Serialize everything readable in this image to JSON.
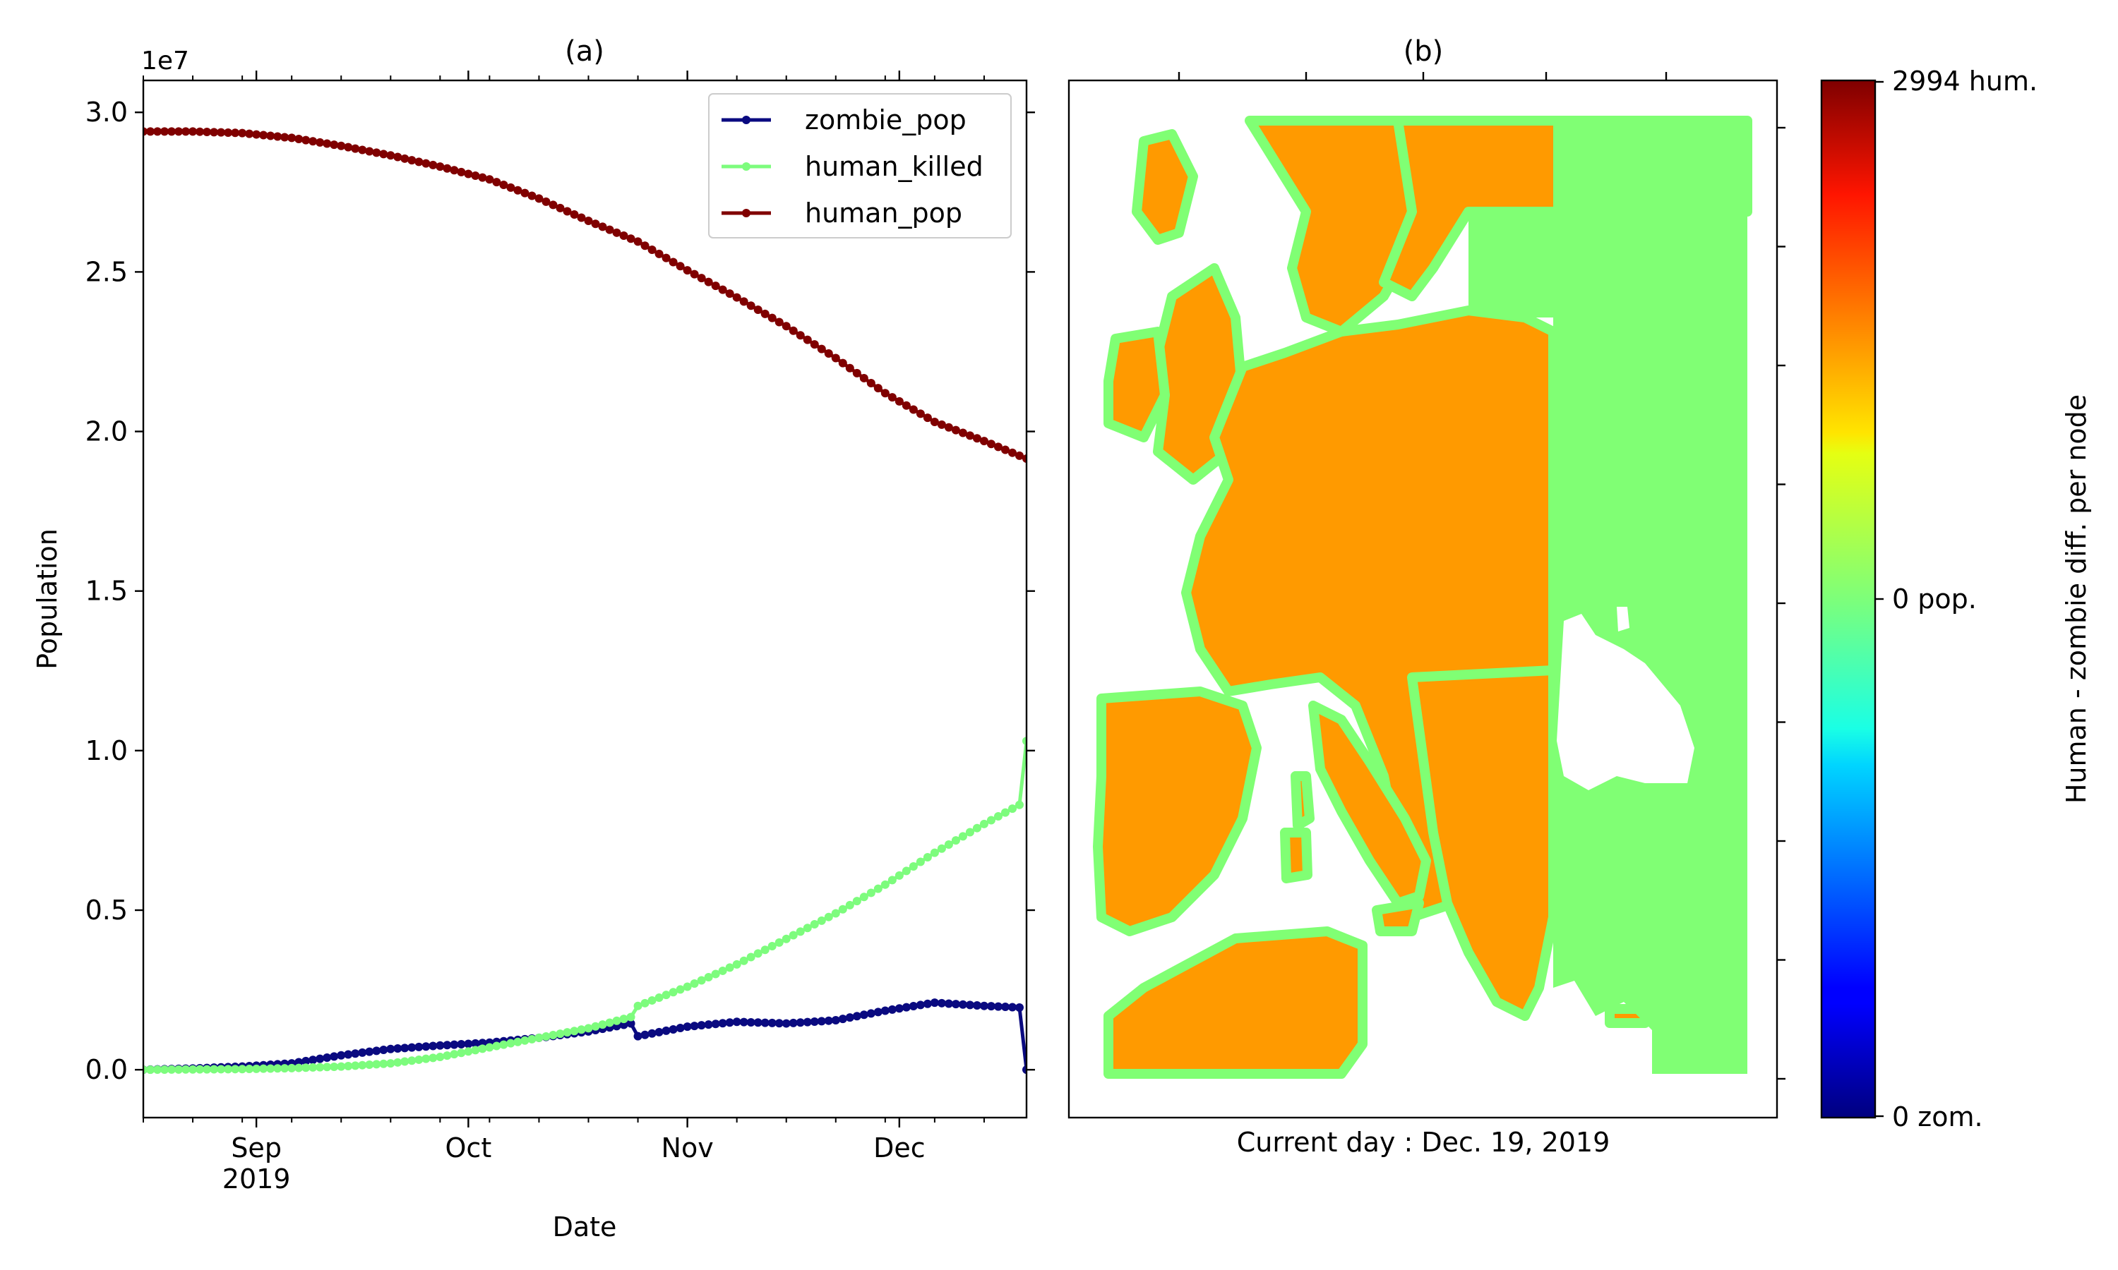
{
  "chart_data": [
    {
      "type": "line",
      "title": "(a)",
      "xlabel": "Date",
      "ylabel": "Population",
      "y_offset_label": "1e7",
      "xlim": [
        "2019-08-16",
        "2019-12-19"
      ],
      "ylim": [
        -1500000,
        31000000
      ],
      "x_ticks": [
        {
          "date": "2019-09-01",
          "label": "Sep",
          "sublabel": "2019"
        },
        {
          "date": "2019-10-01",
          "label": "Oct",
          "sublabel": ""
        },
        {
          "date": "2019-11-01",
          "label": "Nov",
          "sublabel": ""
        },
        {
          "date": "2019-12-01",
          "label": "Dec",
          "sublabel": ""
        }
      ],
      "y_ticks": [
        {
          "value": 0,
          "label": "0.0"
        },
        {
          "value": 5000000,
          "label": "0.5"
        },
        {
          "value": 10000000,
          "label": "1.0"
        },
        {
          "value": 15000000,
          "label": "1.5"
        },
        {
          "value": 20000000,
          "label": "2.0"
        },
        {
          "value": 25000000,
          "label": "2.5"
        },
        {
          "value": 30000000,
          "label": "3.0"
        }
      ],
      "legend_position": "top-right",
      "series": [
        {
          "name": "zombie_pop",
          "color": "#0a0a80",
          "points": [
            [
              "2019-08-16",
              0
            ],
            [
              "2019-08-23",
              40000
            ],
            [
              "2019-08-30",
              100000
            ],
            [
              "2019-09-06",
              200000
            ],
            [
              "2019-09-13",
              450000
            ],
            [
              "2019-09-20",
              650000
            ],
            [
              "2019-09-27",
              760000
            ],
            [
              "2019-10-04",
              850000
            ],
            [
              "2019-10-11",
              1000000
            ],
            [
              "2019-10-18",
              1200000
            ],
            [
              "2019-10-24",
              1450000
            ],
            [
              "2019-10-25",
              1050000
            ],
            [
              "2019-11-01",
              1350000
            ],
            [
              "2019-11-08",
              1500000
            ],
            [
              "2019-11-15",
              1450000
            ],
            [
              "2019-11-22",
              1550000
            ],
            [
              "2019-11-29",
              1850000
            ],
            [
              "2019-12-06",
              2100000
            ],
            [
              "2019-12-13",
              2000000
            ],
            [
              "2019-12-18",
              1950000
            ],
            [
              "2019-12-19",
              0
            ]
          ]
        },
        {
          "name": "human_killed",
          "color": "#7dfc7d",
          "points": [
            [
              "2019-08-16",
              0
            ],
            [
              "2019-08-23",
              10000
            ],
            [
              "2019-08-30",
              20000
            ],
            [
              "2019-09-06",
              50000
            ],
            [
              "2019-09-13",
              100000
            ],
            [
              "2019-09-20",
              200000
            ],
            [
              "2019-09-27",
              400000
            ],
            [
              "2019-10-04",
              700000
            ],
            [
              "2019-10-11",
              1000000
            ],
            [
              "2019-10-18",
              1300000
            ],
            [
              "2019-10-24",
              1650000
            ],
            [
              "2019-10-25",
              2000000
            ],
            [
              "2019-11-01",
              2600000
            ],
            [
              "2019-11-08",
              3300000
            ],
            [
              "2019-11-15",
              4100000
            ],
            [
              "2019-11-22",
              4900000
            ],
            [
              "2019-11-29",
              5800000
            ],
            [
              "2019-12-06",
              6800000
            ],
            [
              "2019-12-13",
              7700000
            ],
            [
              "2019-12-18",
              8300000
            ],
            [
              "2019-12-19",
              10300000
            ]
          ]
        },
        {
          "name": "human_pop",
          "color": "#800000",
          "points": [
            [
              "2019-08-16",
              29400000
            ],
            [
              "2019-08-23",
              29400000
            ],
            [
              "2019-08-30",
              29350000
            ],
            [
              "2019-09-06",
              29200000
            ],
            [
              "2019-09-13",
              28950000
            ],
            [
              "2019-09-20",
              28650000
            ],
            [
              "2019-09-27",
              28300000
            ],
            [
              "2019-10-04",
              27900000
            ],
            [
              "2019-10-11",
              27300000
            ],
            [
              "2019-10-18",
              26600000
            ],
            [
              "2019-10-25",
              25950000
            ],
            [
              "2019-11-01",
              25050000
            ],
            [
              "2019-11-08",
              24200000
            ],
            [
              "2019-11-15",
              23300000
            ],
            [
              "2019-11-22",
              22300000
            ],
            [
              "2019-11-29",
              21200000
            ],
            [
              "2019-12-06",
              20300000
            ],
            [
              "2019-12-13",
              19700000
            ],
            [
              "2019-12-19",
              19150000
            ]
          ]
        }
      ]
    },
    {
      "type": "heatmap",
      "title": "(b)",
      "caption": "Current day : Dec. 19, 2019",
      "colorbar": {
        "label": "Human - zombie diff. per node",
        "colormap": "jet",
        "range": [
          -2994,
          2994
        ],
        "tick_labels": [
          "2994 hum.",
          "0 pop.",
          "0 zom."
        ]
      },
      "colors": {
        "background_region": "#80ff74",
        "high_density": "#d01a00",
        "mid_density": "#ff9a00",
        "low_density": "#e8f020"
      }
    }
  ]
}
